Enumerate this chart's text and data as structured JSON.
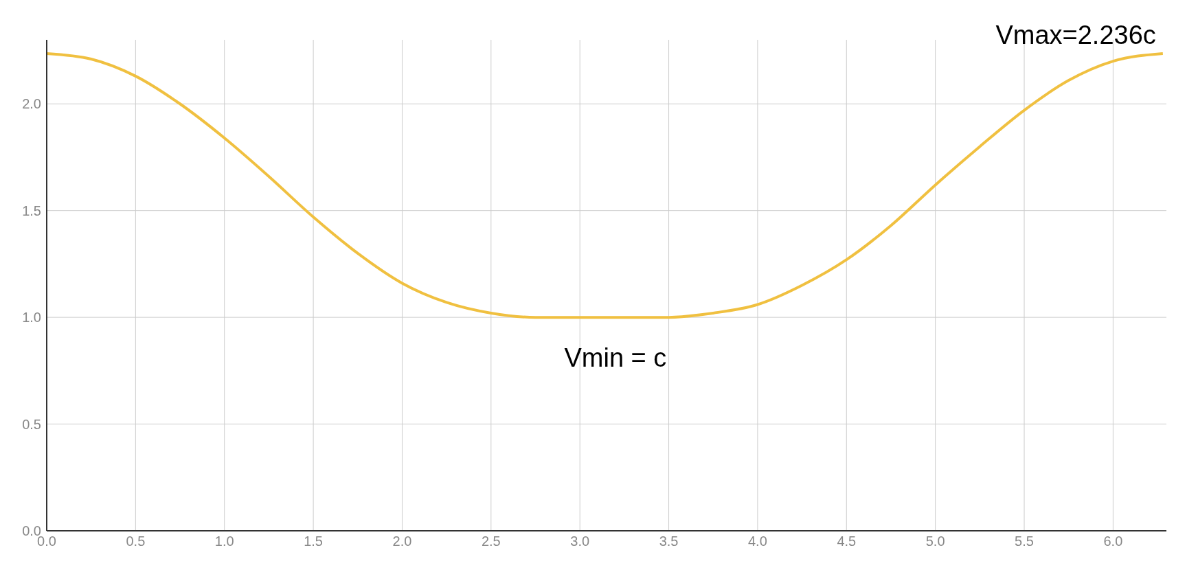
{
  "chart_data": {
    "type": "line",
    "x": [
      0,
      0.25,
      0.5,
      0.75,
      1.0,
      1.25,
      1.5,
      1.75,
      2.0,
      2.25,
      2.5,
      2.75,
      3.0,
      3.25,
      3.5,
      3.75,
      4.0,
      4.25,
      4.5,
      4.75,
      5.0,
      5.25,
      5.5,
      5.75,
      6.0,
      6.28
    ],
    "series": [
      {
        "color": "#f0c040",
        "values": [
          2.236,
          2.21,
          2.13,
          2.0,
          1.84,
          1.66,
          1.47,
          1.3,
          1.16,
          1.07,
          1.02,
          1.0,
          1.0,
          1.0,
          1.0,
          1.02,
          1.06,
          1.15,
          1.27,
          1.43,
          1.62,
          1.8,
          1.97,
          2.11,
          2.2,
          2.236
        ]
      }
    ],
    "xlim": [
      0,
      6.3
    ],
    "ylim": [
      0,
      2.3
    ],
    "xticks": [
      {
        "value": 0,
        "label": "0.0"
      },
      {
        "value": 0.5,
        "label": "0.5"
      },
      {
        "value": 1,
        "label": "1.0"
      },
      {
        "value": 1.5,
        "label": "1.5"
      },
      {
        "value": 2,
        "label": "2.0"
      },
      {
        "value": 2.5,
        "label": "2.5"
      },
      {
        "value": 3,
        "label": "3.0"
      },
      {
        "value": 3.5,
        "label": "3.5"
      },
      {
        "value": 4,
        "label": "4.0"
      },
      {
        "value": 4.5,
        "label": "4.5"
      },
      {
        "value": 5,
        "label": "5.0"
      },
      {
        "value": 5.5,
        "label": "5.5"
      },
      {
        "value": 6,
        "label": "6.0"
      }
    ],
    "yticks": [
      {
        "value": 0,
        "label": "0.0"
      },
      {
        "value": 0.5,
        "label": "0.5"
      },
      {
        "value": 1,
        "label": "1.0"
      },
      {
        "value": 1.5,
        "label": "1.5"
      },
      {
        "value": 2,
        "label": "2.0"
      }
    ],
    "annotations": [
      {
        "text": "Vmax=2.236c",
        "x": 6.28,
        "y": 2.236
      },
      {
        "text": "Vmin = c",
        "x": 3.2,
        "y": 1.0
      }
    ],
    "grid": true,
    "marker": "none",
    "line_style": "solid"
  }
}
